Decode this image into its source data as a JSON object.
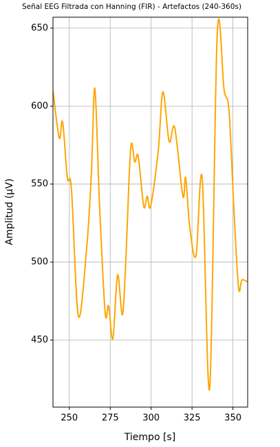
{
  "chart_data": {
    "type": "line",
    "title": "Señal EEG Filtrada con Hanning (FIR) - Artefactos (240-360s)",
    "x_label": "Tiempo [s]",
    "y_label": "Amplitud (µV)",
    "x": [
      240,
      243.8,
      245.9,
      248.8,
      251.3,
      255.5,
      260.6,
      263.5,
      265.6,
      268.5,
      271.9,
      274,
      276.6,
      279.5,
      282.4,
      284.5,
      287.5,
      290,
      292.1,
      295.5,
      297.6,
      299.7,
      304.3,
      307.2,
      311,
      314.4,
      319.4,
      321.1,
      323.6,
      327.4,
      331.2,
      335.8,
      340.4,
      344.6,
      347.6,
      350.5,
      353.4,
      355.5,
      358.9
    ],
    "series": [
      {
        "name": "Señal",
        "color": "#ffa500",
        "values": [
          610,
          579.6,
          589.8,
          554,
          546.7,
          465.3,
          509,
          557.6,
          611.3,
          535.7,
          467.5,
          471.9,
          450.8,
          491.7,
          466.2,
          500.5,
          573,
          564.2,
          567.8,
          535.7,
          542.3,
          535.7,
          570.8,
          609.1,
          577.4,
          586.2,
          542.3,
          554.1,
          522.5,
          504,
          554.1,
          419.1,
          646.5,
          610.4,
          597.2,
          535.7,
          483.8,
          488.6,
          487.3
        ]
      }
    ],
    "xlim": [
      240,
      359
    ],
    "ylim": [
      407,
      657
    ],
    "xticks": [
      250,
      275,
      300,
      325,
      350
    ],
    "yticks": [
      450,
      500,
      550,
      600,
      650
    ],
    "grid": true
  }
}
